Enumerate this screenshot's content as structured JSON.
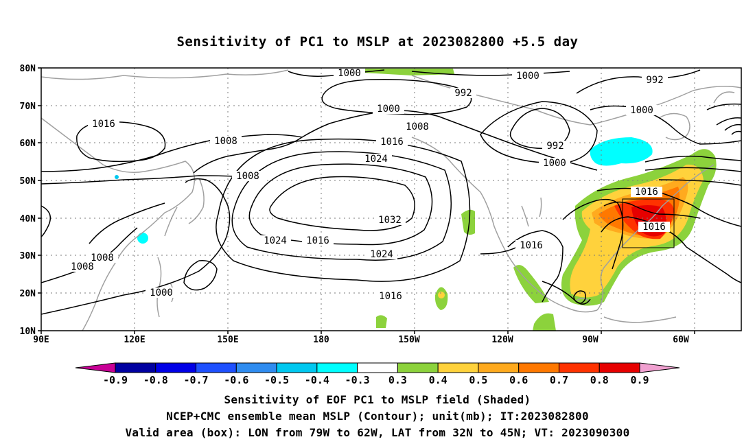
{
  "title": "Sensitivity of PC1 to MSLP at 2023082800 +5.5 day",
  "lat_ticks": [
    "80N",
    "70N",
    "60N",
    "50N",
    "40N",
    "30N",
    "20N",
    "10N"
  ],
  "lon_ticks": [
    "90E",
    "120E",
    "150E",
    "180",
    "150W",
    "120W",
    "90W",
    "60W"
  ],
  "contour_labels": [
    "1000",
    "1000",
    "992",
    "992",
    "1016",
    "1000",
    "1008",
    "1016",
    "1000",
    "1024",
    "992",
    "1000",
    "1008",
    "1008",
    "1016",
    "1032",
    "1024",
    "1016",
    "1016",
    "1024",
    "1008",
    "1008",
    "1016",
    "1000",
    "1016"
  ],
  "colorbar": {
    "labels": [
      "-0.9",
      "-0.8",
      "-0.7",
      "-0.6",
      "-0.5",
      "-0.4",
      "-0.3",
      "0.3",
      "0.4",
      "0.5",
      "0.6",
      "0.7",
      "0.8",
      "0.9"
    ],
    "colors": [
      "#0000a0",
      "#0000e6",
      "#1e50ff",
      "#2f8cf0",
      "#00c8f0",
      "#00ffff",
      "#ffffff",
      "#8cd23c",
      "#ffd23c",
      "#ffaa1e",
      "#ff7800",
      "#ff3200",
      "#e60000"
    ],
    "low_end_color": "#c80096",
    "high_end_color": "#f0a0d0"
  },
  "footer": {
    "line1": "Sensitivity of EOF PC1 to MSLP field (Shaded)",
    "line2": "NCEP+CMC ensemble mean MSLP (Contour); unit(mb); IT:2023082800",
    "line3": "Valid area (box): LON from 79W to 62W, LAT from 32N to 45N; VT: 2023090300"
  }
}
